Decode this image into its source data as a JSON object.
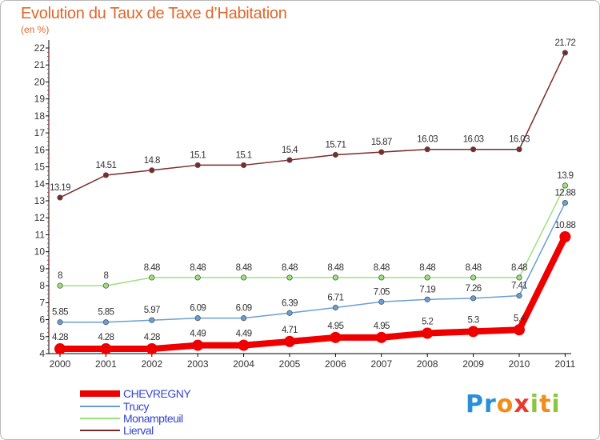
{
  "title": "Evolution du Taux de Taxe d’Habitation",
  "subtitle": "(en %)",
  "logo": {
    "parts": [
      "Pr",
      "o",
      "x",
      "i",
      "t",
      "i"
    ],
    "colors": [
      "#2a8fd6",
      "#f28c1a",
      "#e83a2f",
      "#8cc63f",
      "#f28c1a",
      "#8cc63f"
    ]
  },
  "chart_data": {
    "type": "line",
    "title": "Evolution du Taux de Taxe d’Habitation",
    "subtitle": "(en %)",
    "categories": [
      "2000",
      "2001",
      "2002",
      "2003",
      "2004",
      "2005",
      "2006",
      "2007",
      "2008",
      "2009",
      "2010",
      "2011"
    ],
    "ylim": [
      4,
      22
    ],
    "yticks": [
      "4",
      "5",
      "6",
      "7",
      "8",
      "9",
      "10",
      "11",
      "12",
      "13",
      "14",
      "15",
      "16",
      "17",
      "18",
      "19",
      "20",
      "21",
      "22"
    ],
    "grid": false,
    "legend": "bottom-left",
    "series": [
      {
        "name": "CHEVREGNY",
        "color": "#ee0000",
        "values": [
          4.28,
          4.28,
          4.28,
          4.49,
          4.49,
          4.71,
          4.95,
          4.95,
          5.2,
          5.3,
          5.4,
          10.88
        ],
        "labels": [
          "4.28",
          "4.28",
          "4.28",
          "4.49",
          "4.49",
          "4.71",
          "4.95",
          "4.95",
          "5.2",
          "5.3",
          "5.4",
          "10.88"
        ]
      },
      {
        "name": "Trucy",
        "color": "#6a9fd4",
        "values": [
          5.85,
          5.85,
          5.97,
          6.09,
          6.09,
          6.39,
          6.71,
          7.05,
          7.19,
          7.26,
          7.41,
          12.88
        ],
        "labels": [
          "5.85",
          "5.85",
          "5.97",
          "6.09",
          "6.09",
          "6.39",
          "6.71",
          "7.05",
          "7.19",
          "7.26",
          "7.41",
          "12.88"
        ]
      },
      {
        "name": "Monampteuil",
        "color": "#9be27a",
        "values": [
          8,
          8,
          8.48,
          8.48,
          8.48,
          8.48,
          8.48,
          8.48,
          8.48,
          8.48,
          8.48,
          13.9
        ],
        "labels": [
          "8",
          "8",
          "8.48",
          "8.48",
          "8.48",
          "8.48",
          "8.48",
          "8.48",
          "8.48",
          "8.48",
          "8.48",
          "13.9"
        ]
      },
      {
        "name": "Lierval",
        "color": "#7a2a2a",
        "values": [
          13.19,
          14.51,
          14.8,
          15.1,
          15.1,
          15.4,
          15.71,
          15.87,
          16.03,
          16.03,
          16.03,
          21.72
        ],
        "labels": [
          "13.19",
          "14.51",
          "14.8",
          "15.1",
          "15.1",
          "15.4",
          "15.71",
          "15.87",
          "16.03",
          "16.03",
          "16.03",
          "21.72"
        ]
      }
    ]
  }
}
